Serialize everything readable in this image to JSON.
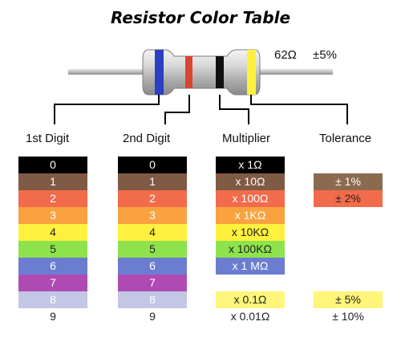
{
  "title": "Resistor Color Table",
  "example": {
    "value": "62Ω",
    "tolerance": "±5%"
  },
  "headers": {
    "first_digit": "1st Digit",
    "second_digit": "2nd Digit",
    "multiplier": "Multiplier",
    "tolerance": "Tolerance"
  },
  "digits": [
    {
      "label": "0",
      "color": "#000000",
      "text_color": "#ffffff"
    },
    {
      "label": "1",
      "color": "#7f5a45",
      "text_color": "#ffffff"
    },
    {
      "label": "2",
      "color": "#f26b4b",
      "text_color": "#ffffff"
    },
    {
      "label": "3",
      "color": "#f9a23f",
      "text_color": "#ffffff"
    },
    {
      "label": "4",
      "color": "#fff13d",
      "text_color": "#222222"
    },
    {
      "label": "5",
      "color": "#8ee34c",
      "text_color": "#222222"
    },
    {
      "label": "6",
      "color": "#6a7dd1",
      "text_color": "#ffffff"
    },
    {
      "label": "7",
      "color": "#b04ab3",
      "text_color": "#ffffff"
    },
    {
      "label": "8",
      "color": "#c3c6e4",
      "text_color": "#ffffff"
    },
    {
      "label": "9",
      "color": "#ffffff",
      "text_color": "#222222"
    }
  ],
  "multipliers": [
    {
      "label": "x 1Ω",
      "color": "#000000",
      "text_color": "#ffffff"
    },
    {
      "label": "x 10Ω",
      "color": "#7f5a45",
      "text_color": "#ffffff"
    },
    {
      "label": "x 100Ω",
      "color": "#f26b4b",
      "text_color": "#ffffff"
    },
    {
      "label": "x 1KΩ",
      "color": "#f9a23f",
      "text_color": "#ffffff"
    },
    {
      "label": "x 10KΩ",
      "color": "#fff13d",
      "text_color": "#222222"
    },
    {
      "label": "x 100KΩ",
      "color": "#8ee34c",
      "text_color": "#222222"
    },
    {
      "label": "x 1 MΩ",
      "color": "#6a7dd1",
      "text_color": "#ffffff"
    },
    {
      "label": "",
      "color": "#ffffff",
      "text_color": "#222222"
    },
    {
      "label": "x 0.1Ω",
      "color": "#fff57a",
      "text_color": "#222222"
    },
    {
      "label": "x 0.01Ω",
      "color": "#ffffff",
      "text_color": "#222222"
    }
  ],
  "tolerances": [
    {
      "label": "± 1%",
      "color": "#8b6b4f",
      "text_color": "#ffffff",
      "row": 1
    },
    {
      "label": "± 2%",
      "color": "#f26b4b",
      "text_color": "#222222",
      "row": 2
    },
    {
      "label": "± 5%",
      "color": "#fff57a",
      "text_color": "#222222",
      "row": 8
    },
    {
      "label": "± 10%",
      "color": "#ffffff",
      "text_color": "#222222",
      "row": 9
    }
  ],
  "bands": [
    {
      "name": "first-band",
      "color": "#2b3fc2"
    },
    {
      "name": "second-band",
      "color": "#d9452f"
    },
    {
      "name": "multiplier-band",
      "color": "#111111"
    },
    {
      "name": "tolerance-band",
      "color": "#fff13d"
    }
  ]
}
